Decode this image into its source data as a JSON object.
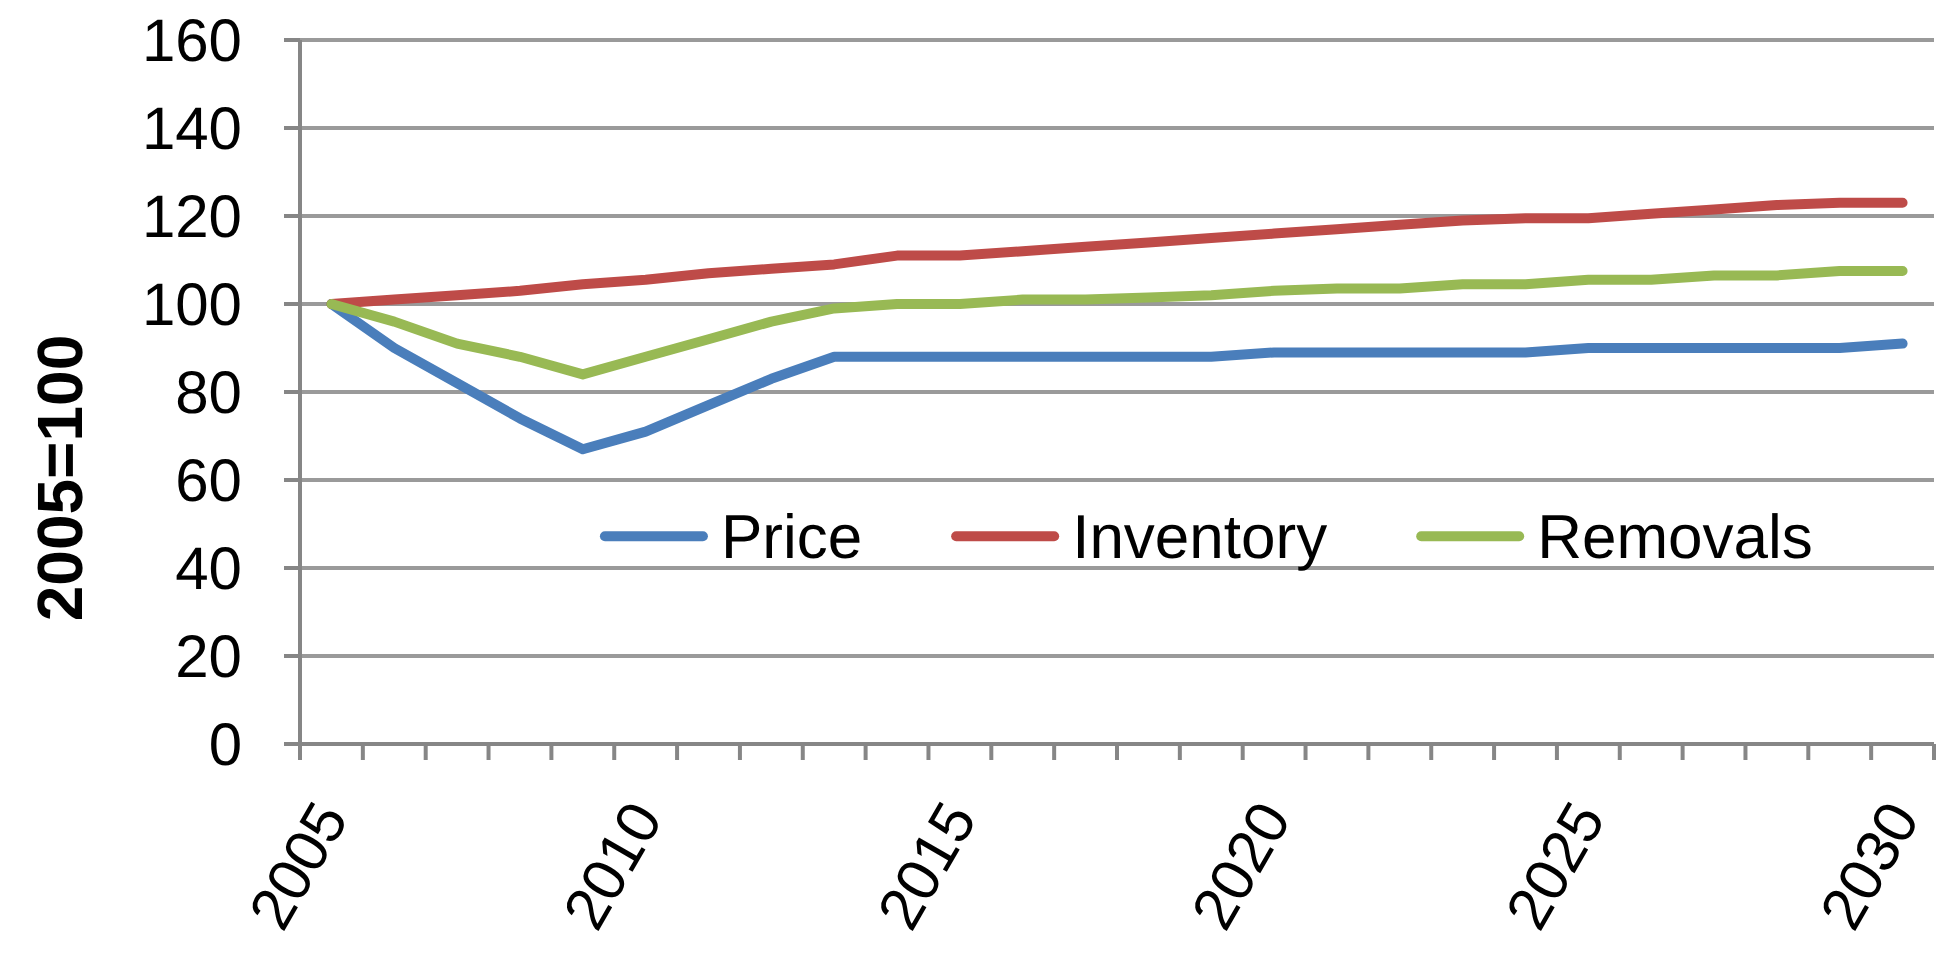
{
  "chart_data": {
    "type": "line",
    "ylabel": "2005=100",
    "categories": [
      "2005",
      null,
      null,
      null,
      null,
      "2010",
      null,
      null,
      null,
      null,
      "2015",
      null,
      null,
      null,
      null,
      "2020",
      null,
      null,
      null,
      null,
      "2025",
      null,
      null,
      null,
      null,
      "2030"
    ],
    "series": [
      {
        "name": "Price",
        "color": "#4a7ebb",
        "values": [
          100,
          90,
          82,
          74,
          67,
          71,
          77,
          83,
          88,
          88,
          88,
          88,
          88,
          88,
          88,
          89,
          89,
          89,
          89,
          89,
          90,
          90,
          90,
          90,
          90,
          91
        ]
      },
      {
        "name": "Inventory",
        "color": "#be4b48",
        "values": [
          100,
          101,
          102,
          103,
          104.5,
          105.5,
          107,
          108,
          109,
          111,
          111,
          112,
          113,
          114,
          115,
          116,
          117,
          118,
          119,
          119.5,
          119.5,
          120.5,
          121.5,
          122.5,
          123,
          123
        ]
      },
      {
        "name": "Removals",
        "color": "#98b954",
        "values": [
          100,
          96,
          91,
          88,
          84,
          88,
          92,
          96,
          99,
          100,
          100,
          101,
          101,
          101.5,
          102,
          103,
          103.5,
          103.5,
          104.5,
          104.5,
          105.5,
          105.5,
          106.5,
          106.5,
          107.5,
          107.5
        ]
      }
    ],
    "ylim": [
      0,
      160
    ],
    "yticks": [
      0,
      20,
      40,
      60,
      80,
      100,
      120,
      140,
      160
    ],
    "grid": "y",
    "legend": "bottom",
    "marker": "none",
    "line_style": "solid"
  }
}
